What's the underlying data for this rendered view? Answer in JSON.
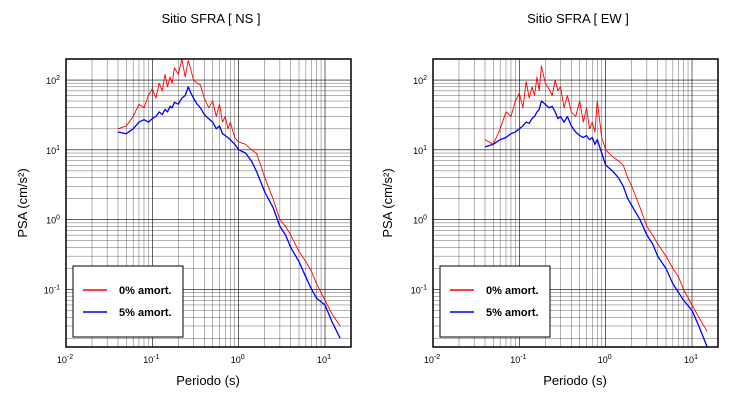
{
  "chart_data": [
    {
      "type": "line",
      "title": "Sitio SFRA [ NS ]",
      "xlabel": "Periodo (s)",
      "ylabel": "PSA (cm/s²)",
      "xscale": "log",
      "yscale": "log",
      "xlim": [
        0.01,
        20
      ],
      "ylim": [
        0.015,
        200
      ],
      "grid": true,
      "legend_placement": "bottom-left",
      "x_ticks": [
        {
          "base": "10",
          "exp": "-2"
        },
        {
          "base": "10",
          "exp": "-1"
        },
        {
          "base": "10",
          "exp": "0"
        },
        {
          "base": "10",
          "exp": "1"
        }
      ],
      "y_ticks": [
        {
          "base": "10",
          "exp": "-1"
        },
        {
          "base": "10",
          "exp": "0"
        },
        {
          "base": "10",
          "exp": "1"
        },
        {
          "base": "10",
          "exp": "2"
        }
      ],
      "series": [
        {
          "name": "0% amort.",
          "color": "#ff0000",
          "x": [
            0.04,
            0.05,
            0.06,
            0.07,
            0.08,
            0.09,
            0.1,
            0.11,
            0.12,
            0.13,
            0.14,
            0.15,
            0.16,
            0.17,
            0.18,
            0.2,
            0.22,
            0.24,
            0.26,
            0.28,
            0.3,
            0.33,
            0.36,
            0.4,
            0.45,
            0.5,
            0.55,
            0.6,
            0.65,
            0.7,
            0.75,
            0.8,
            0.9,
            1.0,
            1.2,
            1.4,
            1.6,
            1.8,
            2.0,
            2.5,
            3.0,
            3.5,
            4.0,
            5.0,
            6.0,
            7.0,
            8.0,
            10.0,
            12.0,
            15.0
          ],
          "y": [
            20,
            22,
            30,
            45,
            40,
            60,
            75,
            55,
            90,
            70,
            120,
            80,
            110,
            90,
            150,
            120,
            200,
            110,
            190,
            140,
            100,
            90,
            85,
            55,
            40,
            50,
            30,
            45,
            25,
            30,
            20,
            25,
            15,
            13,
            12,
            10,
            9,
            6,
            4,
            2,
            1,
            0.8,
            0.6,
            0.35,
            0.25,
            0.18,
            0.12,
            0.07,
            0.045,
            0.03
          ]
        },
        {
          "name": "5% amort.",
          "color": "#0000ff",
          "x": [
            0.04,
            0.05,
            0.06,
            0.07,
            0.08,
            0.09,
            0.1,
            0.11,
            0.12,
            0.13,
            0.14,
            0.15,
            0.16,
            0.17,
            0.18,
            0.2,
            0.22,
            0.24,
            0.26,
            0.28,
            0.3,
            0.33,
            0.36,
            0.4,
            0.45,
            0.5,
            0.55,
            0.6,
            0.65,
            0.7,
            0.75,
            0.8,
            0.9,
            1.0,
            1.2,
            1.4,
            1.6,
            1.8,
            2.0,
            2.5,
            3.0,
            3.5,
            4.0,
            5.0,
            6.0,
            7.0,
            8.0,
            10.0,
            12.0,
            15.0
          ],
          "y": [
            18,
            17,
            20,
            25,
            27,
            25,
            28,
            30,
            35,
            32,
            38,
            35,
            42,
            40,
            48,
            45,
            55,
            60,
            80,
            65,
            55,
            45,
            40,
            32,
            28,
            25,
            20,
            22,
            17,
            16,
            15,
            14,
            12,
            10,
            9,
            7,
            5,
            3.5,
            2.5,
            1.5,
            0.8,
            0.6,
            0.4,
            0.25,
            0.15,
            0.1,
            0.075,
            0.06,
            0.035,
            0.02
          ]
        }
      ]
    },
    {
      "type": "line",
      "title": "Sitio SFRA [ EW ]",
      "xlabel": "Periodo (s)",
      "ylabel": "PSA (cm/s²)",
      "xscale": "log",
      "yscale": "log",
      "xlim": [
        0.01,
        20
      ],
      "ylim": [
        0.015,
        200
      ],
      "grid": true,
      "legend_placement": "bottom-left",
      "x_ticks": [
        {
          "base": "10",
          "exp": "-2"
        },
        {
          "base": "10",
          "exp": "-1"
        },
        {
          "base": "10",
          "exp": "0"
        },
        {
          "base": "10",
          "exp": "1"
        }
      ],
      "y_ticks": [
        {
          "base": "10",
          "exp": "-1"
        },
        {
          "base": "10",
          "exp": "0"
        },
        {
          "base": "10",
          "exp": "1"
        },
        {
          "base": "10",
          "exp": "2"
        }
      ],
      "series": [
        {
          "name": "0% amort.",
          "color": "#ff0000",
          "x": [
            0.04,
            0.05,
            0.06,
            0.07,
            0.08,
            0.09,
            0.1,
            0.11,
            0.12,
            0.13,
            0.14,
            0.15,
            0.16,
            0.17,
            0.18,
            0.2,
            0.22,
            0.24,
            0.26,
            0.28,
            0.3,
            0.33,
            0.36,
            0.4,
            0.45,
            0.5,
            0.55,
            0.6,
            0.65,
            0.7,
            0.75,
            0.8,
            0.9,
            1.0,
            1.2,
            1.4,
            1.6,
            1.8,
            2.0,
            2.5,
            3.0,
            3.5,
            4.0,
            5.0,
            6.0,
            7.0,
            8.0,
            10.0,
            12.0,
            15.0
          ],
          "y": [
            14,
            12,
            20,
            35,
            30,
            50,
            65,
            40,
            95,
            55,
            80,
            60,
            110,
            70,
            160,
            90,
            75,
            60,
            100,
            70,
            80,
            40,
            60,
            35,
            30,
            50,
            25,
            40,
            20,
            25,
            18,
            50,
            15,
            10,
            8,
            7,
            6,
            4,
            3,
            1.5,
            0.8,
            0.6,
            0.45,
            0.3,
            0.2,
            0.15,
            0.1,
            0.06,
            0.04,
            0.025
          ]
        },
        {
          "name": "5% amort.",
          "color": "#0000ff",
          "x": [
            0.04,
            0.05,
            0.06,
            0.07,
            0.08,
            0.09,
            0.1,
            0.11,
            0.12,
            0.13,
            0.14,
            0.15,
            0.16,
            0.17,
            0.18,
            0.2,
            0.22,
            0.24,
            0.26,
            0.28,
            0.3,
            0.33,
            0.36,
            0.4,
            0.45,
            0.5,
            0.55,
            0.6,
            0.65,
            0.7,
            0.75,
            0.8,
            0.9,
            1.0,
            1.2,
            1.4,
            1.6,
            1.8,
            2.0,
            2.5,
            3.0,
            3.5,
            4.0,
            5.0,
            6.0,
            7.0,
            8.0,
            10.0,
            12.0,
            15.0
          ],
          "y": [
            11,
            12,
            14,
            15,
            17,
            18,
            20,
            22,
            25,
            24,
            28,
            30,
            35,
            38,
            50,
            45,
            40,
            42,
            35,
            28,
            30,
            25,
            30,
            22,
            18,
            16,
            15,
            16,
            14,
            15,
            12,
            14,
            9,
            6,
            5,
            4,
            3,
            2,
            1.6,
            1,
            0.6,
            0.45,
            0.3,
            0.2,
            0.12,
            0.09,
            0.07,
            0.05,
            0.03,
            0.015
          ]
        }
      ]
    }
  ]
}
